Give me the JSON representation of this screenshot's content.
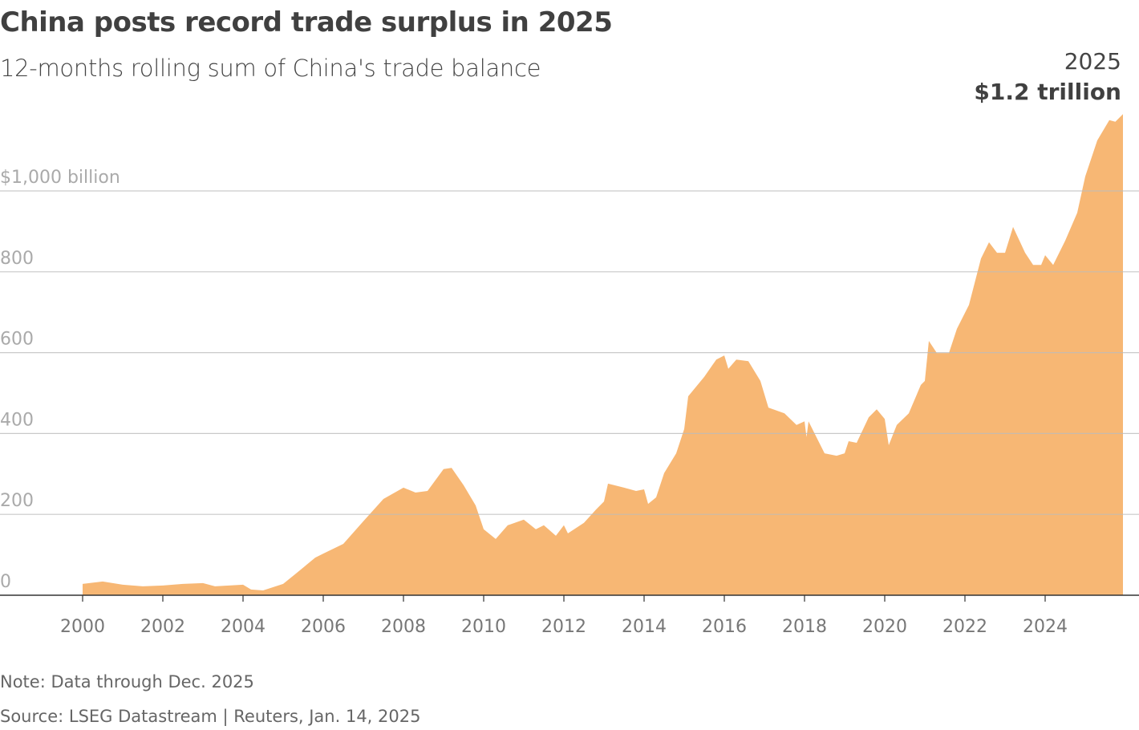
{
  "title": "China posts record trade surplus in 2025",
  "subtitle": "12-months rolling sum of China's trade balance",
  "annotation": {
    "year": "2025",
    "value": "$1.2 trillion"
  },
  "note": "Note: Data through Dec. 2025",
  "source": "Source: LSEG Datastream | Reuters, Jan. 14, 2025",
  "colors": {
    "fill": "#f7b774",
    "grid": "#bbbbbb",
    "axis": "#333333"
  },
  "chart_data": {
    "type": "area",
    "title": "China posts record trade surplus in 2025",
    "ylabel": "",
    "xlabel": "",
    "ylim": [
      0,
      1200
    ],
    "xlim": [
      1999.4,
      2026.3
    ],
    "grid": true,
    "y_ticks": [
      0,
      200,
      400,
      600,
      800,
      1000
    ],
    "y_tick_labels": [
      "0",
      "200",
      "400",
      "600",
      "800",
      "$1,000 billion"
    ],
    "x_ticks": [
      2000,
      2002,
      2004,
      2006,
      2008,
      2010,
      2012,
      2014,
      2016,
      2018,
      2020,
      2022,
      2024
    ],
    "x_tick_labels": [
      "2000",
      "2002",
      "2004",
      "2006",
      "2008",
      "2010",
      "2012",
      "2014",
      "2016",
      "2018",
      "2020",
      "2022",
      "2024"
    ],
    "x": [
      2000.0,
      2000.5,
      2001.0,
      2001.5,
      2002.0,
      2002.5,
      2003.0,
      2003.3,
      2004.0,
      2004.2,
      2004.5,
      2005.0,
      2005.3,
      2005.8,
      2006.0,
      2006.5,
      2007.0,
      2007.5,
      2008.0,
      2008.3,
      2008.6,
      2009.0,
      2009.2,
      2009.5,
      2009.8,
      2010.0,
      2010.3,
      2010.6,
      2011.0,
      2011.3,
      2011.5,
      2011.8,
      2012.0,
      2012.1,
      2012.5,
      2012.8,
      2013.0,
      2013.1,
      2013.5,
      2013.8,
      2014.0,
      2014.1,
      2014.3,
      2014.5,
      2014.8,
      2015.0,
      2015.1,
      2015.5,
      2015.8,
      2016.0,
      2016.1,
      2016.3,
      2016.6,
      2016.9,
      2017.1,
      2017.5,
      2017.8,
      2018.0,
      2018.05,
      2018.1,
      2018.5,
      2018.8,
      2019.0,
      2019.1,
      2019.3,
      2019.6,
      2019.8,
      2020.0,
      2020.1,
      2020.3,
      2020.6,
      2020.9,
      2021.0,
      2021.1,
      2021.3,
      2021.6,
      2021.8,
      2022.1,
      2022.4,
      2022.6,
      2022.8,
      2023.0,
      2023.2,
      2023.5,
      2023.7,
      2023.9,
      2024.0,
      2024.2,
      2024.5,
      2024.8,
      2025.0,
      2025.3,
      2025.6,
      2025.75,
      2025.94
    ],
    "values": [
      28,
      34,
      26,
      22,
      24,
      28,
      30,
      22,
      26,
      14,
      12,
      28,
      52,
      93,
      103,
      127,
      183,
      238,
      266,
      254,
      258,
      312,
      315,
      272,
      222,
      163,
      139,
      173,
      187,
      163,
      173,
      147,
      173,
      153,
      179,
      212,
      232,
      276,
      266,
      258,
      262,
      226,
      242,
      302,
      351,
      411,
      492,
      540,
      583,
      593,
      560,
      583,
      579,
      530,
      464,
      450,
      421,
      430,
      391,
      430,
      351,
      345,
      351,
      381,
      377,
      440,
      460,
      436,
      371,
      421,
      450,
      520,
      530,
      629,
      599,
      599,
      659,
      718,
      833,
      873,
      847,
      847,
      911,
      847,
      817,
      817,
      841,
      817,
      877,
      946,
      1036,
      1125,
      1175,
      1171,
      1190
    ]
  }
}
